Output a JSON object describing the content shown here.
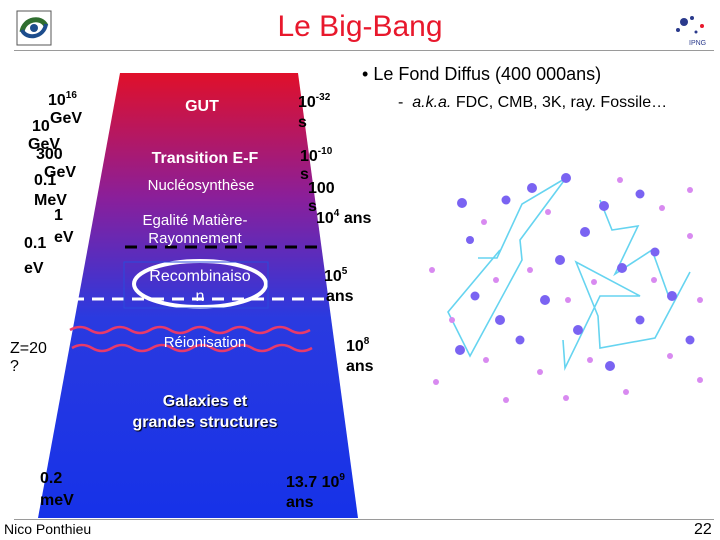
{
  "slide": {
    "title": "Le Big-Bang",
    "bullet": "Le Fond Diffus (400 000ans)",
    "sub_dash": "-",
    "sub_abbr": "a.k.a.",
    "sub_rest": "FDC, CMB, 3K, ray. Fossile…",
    "footer": "Nico Ponthieu",
    "page_number": "22"
  },
  "energies": {
    "e1_value": "10",
    "e1_exp": "16",
    "e1_unit": "GeV",
    "e2_value": "10",
    "e2_unit": "GeV",
    "e3_value": "300",
    "e3_unit": "GeV",
    "e4_value": "0.1",
    "e4_unit": "MeV",
    "e5_value": "1",
    "e5_unit": "eV",
    "e6_value": "0.1",
    "e6_unit": "eV",
    "redshift": "Z=20",
    "redshift_q": "?",
    "e7_value": "0.2",
    "e7_unit": "meV"
  },
  "epochs": {
    "gut": "GUT",
    "transition": "Transition E-F",
    "nucleo": "Nucléosynthèse",
    "egalite_1": "Egalité Matière-",
    "egalite_2": "Rayonnement",
    "recomb_1": "Recombinaiso",
    "recomb_2": "n",
    "reion": "Réionisation",
    "galaxies_1": "Galaxies et",
    "galaxies_2": "grandes structures"
  },
  "times": {
    "t1_value": "10",
    "t1_exp": "-32",
    "t1_unit": "s",
    "t2_value": "10",
    "t2_exp": "-10",
    "t2_unit": "s",
    "t3_value": "100",
    "t3_unit": "s",
    "t4_value": "10",
    "t4_exp": "4",
    "t4_unit": "ans",
    "t5_value": "10",
    "t5_exp": "5",
    "t5_unit": "ans",
    "t6_value": "10",
    "t6_exp": "8",
    "t6_unit": "ans",
    "t7_value": "13.7 10",
    "t7_exp": "9",
    "t7_unit": "ans"
  },
  "colors": {
    "title": "#e8182c",
    "funnel_top": "#e0102a",
    "funnel_bottom": "#1632e8",
    "photon_path": "#66d4f0",
    "particle_purple": "#7a63f2",
    "particle_pink": "#d88af0",
    "dashed_line": "#000000",
    "recombination_ring": "#ffffff",
    "reion_wave": "#e83a6a"
  }
}
